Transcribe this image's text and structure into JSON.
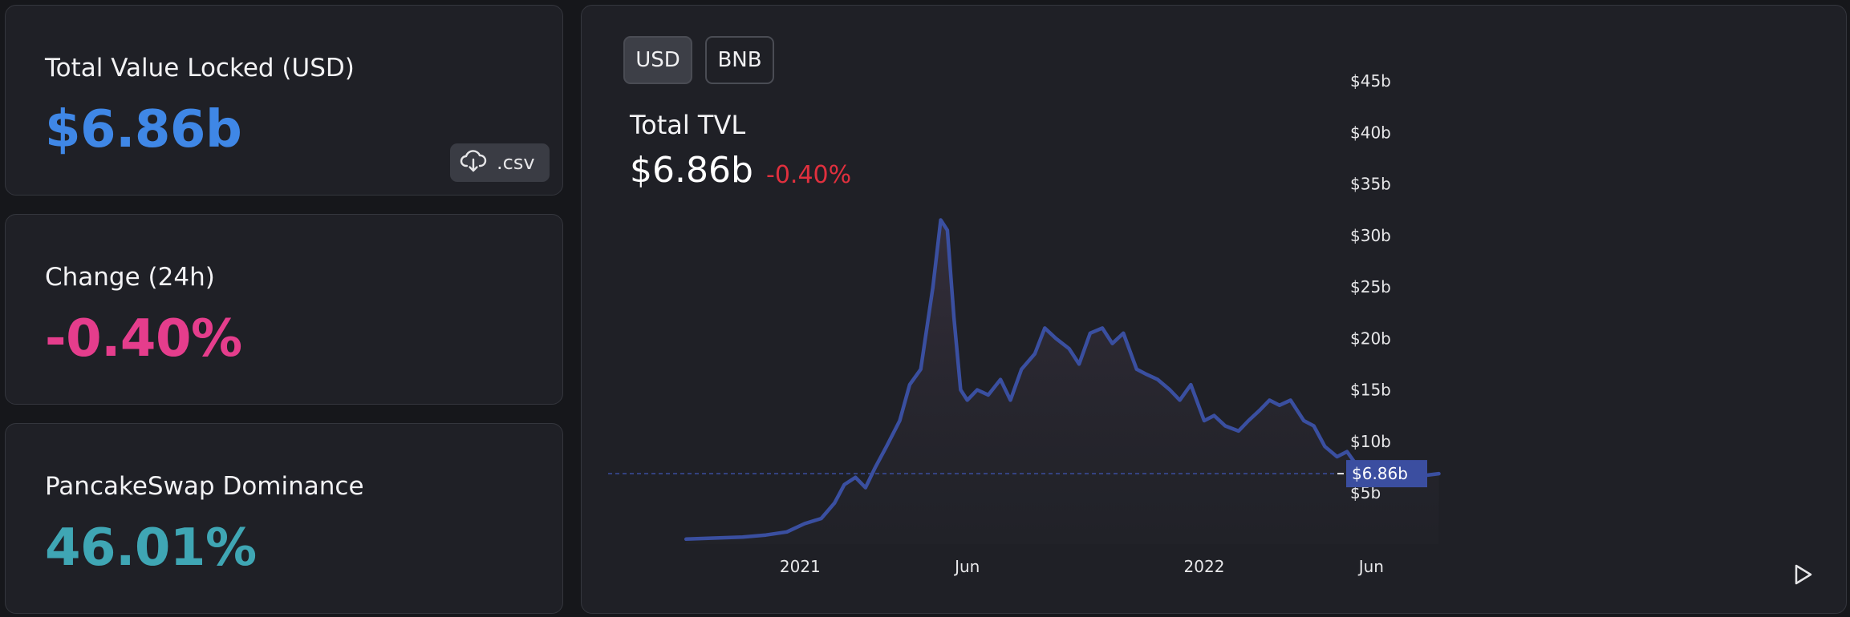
{
  "cards": {
    "tvl": {
      "label": "Total Value Locked (USD)",
      "value": "$6.86b",
      "csv_label": ".csv"
    },
    "change": {
      "label": "Change (24h)",
      "value": "-0.40%"
    },
    "dominance": {
      "label": "PancakeSwap Dominance",
      "value": "46.01%"
    }
  },
  "chart_panel": {
    "toggles": {
      "usd": "USD",
      "bnb": "BNB",
      "active": "USD"
    },
    "title": "Total TVL",
    "value": "$6.86b",
    "change": "-0.40%",
    "current_label": "$6.86b"
  },
  "colors": {
    "tvl_accent": "#3f87e6",
    "change_accent": "#e53d8c",
    "dominance_accent": "#3fa6b4",
    "negative": "#e0303e",
    "series_line": "#3a4fa0"
  },
  "icons": {
    "csv": "cloud-download-icon",
    "play": "play-icon"
  },
  "chart_data": {
    "type": "area",
    "title": "Total TVL",
    "xlabel": "",
    "ylabel": "",
    "ylim": [
      0,
      47
    ],
    "yticks": [
      "$5b",
      "$10b",
      "$15b",
      "$20b",
      "$25b",
      "$30b",
      "$35b",
      "$40b",
      "$45b"
    ],
    "ytick_values": [
      5,
      10,
      15,
      20,
      25,
      30,
      35,
      40,
      45
    ],
    "xticks": [
      "2021",
      "Jun",
      "2022",
      "Jun"
    ],
    "xtick_values": [
      "2021-01-01",
      "2021-06-01",
      "2022-01-01",
      "2022-06-01"
    ],
    "x_range": [
      "2020-09-01",
      "2023-06-01"
    ],
    "grid": false,
    "current_value": 6.86,
    "series": [
      {
        "x": [
          "2020-09-20",
          "2020-10-15",
          "2020-11-10",
          "2020-12-01",
          "2020-12-20",
          "2021-01-05",
          "2021-01-20",
          "2021-02-01",
          "2021-02-10",
          "2021-02-20",
          "2021-03-01",
          "2021-03-10",
          "2021-03-20",
          "2021-04-01",
          "2021-04-10",
          "2021-04-20",
          "2021-05-01",
          "2021-05-08",
          "2021-05-14",
          "2021-05-20",
          "2021-05-26",
          "2021-06-01",
          "2021-06-10",
          "2021-06-20",
          "2021-07-01",
          "2021-07-10",
          "2021-07-20",
          "2021-08-01",
          "2021-08-10",
          "2021-08-20",
          "2021-09-01",
          "2021-09-10",
          "2021-09-20",
          "2021-10-01",
          "2021-10-10",
          "2021-10-20",
          "2021-11-01",
          "2021-11-10",
          "2021-11-20",
          "2021-12-01",
          "2021-12-10",
          "2021-12-20",
          "2022-01-01",
          "2022-01-10",
          "2022-01-20",
          "2022-02-01",
          "2022-02-10",
          "2022-02-20",
          "2022-03-01",
          "2022-03-10",
          "2022-03-20",
          "2022-04-01",
          "2022-04-10",
          "2022-04-20",
          "2022-05-01",
          "2022-05-10",
          "2022-05-20",
          "2022-06-01",
          "2022-06-10",
          "2022-06-20",
          "2022-07-01",
          "2022-07-10",
          "2022-07-20",
          "2022-08-01"
        ],
        "values": [
          0.5,
          0.6,
          0.7,
          0.9,
          1.2,
          2.0,
          2.5,
          4.0,
          5.8,
          6.5,
          5.5,
          7.5,
          9.5,
          12.0,
          15.5,
          17.0,
          25.0,
          31.5,
          30.5,
          22.0,
          15.0,
          14.0,
          15.0,
          14.5,
          16.0,
          14.0,
          17.0,
          18.5,
          21.0,
          20.0,
          19.0,
          17.5,
          20.5,
          21.0,
          19.5,
          20.5,
          17.0,
          16.5,
          16.0,
          15.0,
          14.0,
          15.5,
          12.0,
          12.5,
          11.5,
          11.0,
          12.0,
          13.0,
          14.0,
          13.5,
          14.0,
          12.0,
          11.5,
          9.5,
          8.5,
          9.0,
          7.5,
          6.0,
          6.5,
          6.8,
          6.5,
          6.9,
          6.7,
          6.86
        ]
      }
    ]
  }
}
